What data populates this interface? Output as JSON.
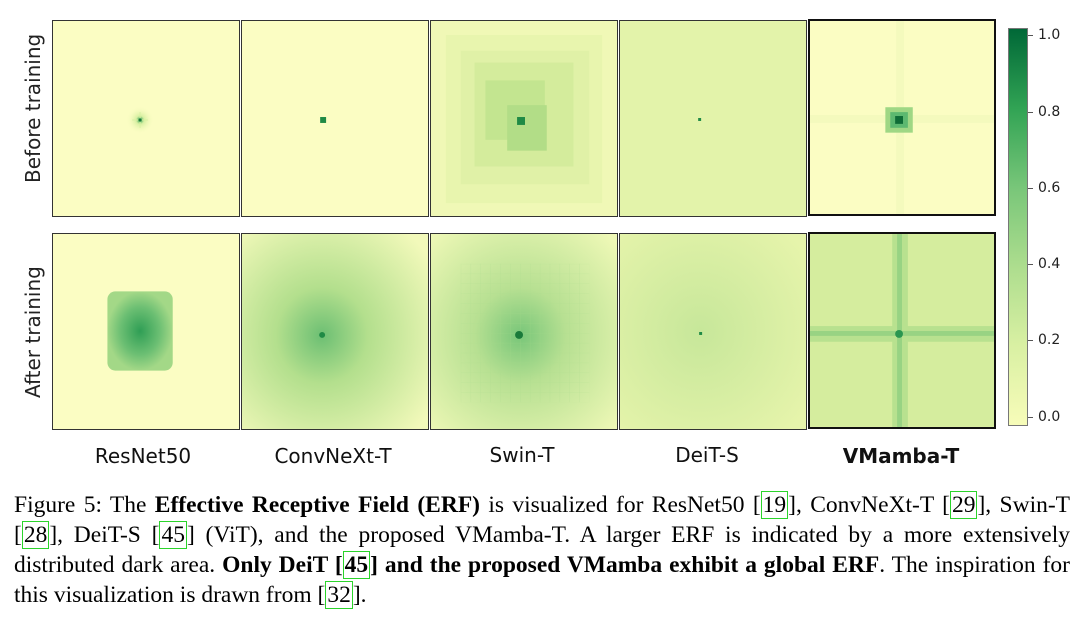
{
  "figure": {
    "row_labels": [
      "Before training",
      "After training"
    ],
    "column_labels": [
      "ResNet50",
      "ConvNeXt-T",
      "Swin-T",
      "DeiT-S",
      "VMamba-T"
    ],
    "colorbar": {
      "ticks": [
        "1.0",
        "0.8",
        "0.6",
        "0.4",
        "0.2",
        "0.0"
      ],
      "colors": [
        "#006837",
        "#31a354",
        "#78c679",
        "#addd8e",
        "#d9f0a3",
        "#f7fcb9"
      ]
    }
  },
  "caption": {
    "p1": "Figure 5: The ",
    "b1": "Effective Receptive Field (ERF)",
    "p2": " is visualized for ResNet50 ",
    "r1": "19",
    "p3": ", ConvNeXt-T ",
    "r2": "29",
    "p4": ", Swin-T ",
    "r3": "28",
    "p5": ", DeiT-S ",
    "r4": "45",
    "p6": " (ViT), and the proposed VMamba-T. A larger ERF is indicated by a more extensively distributed dark area. ",
    "b2": "Only DeiT ",
    "r5": "45",
    "b3": " and the proposed VMamba exhibit a global ERF",
    "p7": ". The inspiration for this visualization is drawn from ",
    "r6": "32",
    "p8": "."
  }
}
